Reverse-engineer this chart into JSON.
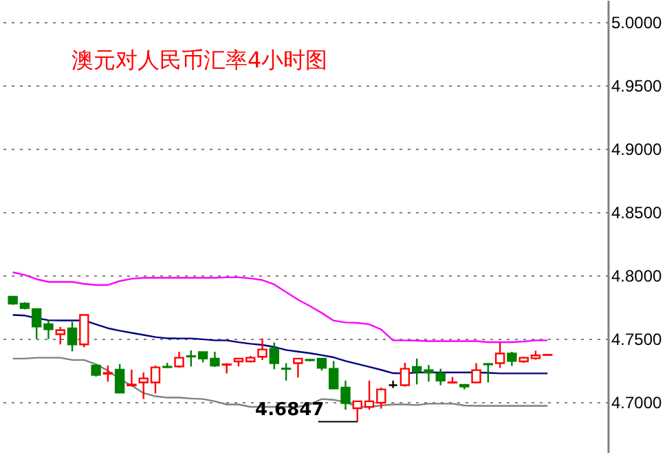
{
  "chart_data": {
    "type": "candlestick",
    "title": "澳元对人民币汇率4小时图",
    "categories": [
      null,
      null,
      null,
      null,
      null,
      null,
      null,
      null,
      null,
      null,
      null,
      null,
      null,
      null,
      null,
      null,
      null,
      null,
      null,
      null,
      null,
      null,
      null,
      null,
      null,
      null,
      null,
      null,
      null,
      null,
      null,
      null,
      null,
      null,
      null,
      null,
      null,
      null,
      null,
      null,
      null,
      null,
      null,
      null,
      null,
      null
    ],
    "ohlc": [
      [
        4.7834,
        4.784,
        4.777,
        4.7779
      ],
      [
        4.7779,
        4.779,
        4.7733,
        4.7744
      ],
      [
        4.7736,
        4.7736,
        4.75,
        4.7598
      ],
      [
        4.7616,
        4.7646,
        4.75,
        4.7576
      ],
      [
        4.7537,
        4.7595,
        4.7457,
        4.757
      ],
      [
        4.7584,
        4.7635,
        4.7402,
        4.7457
      ],
      [
        4.7457,
        4.7689,
        4.7435,
        4.7689
      ],
      [
        4.729,
        4.7298,
        4.7203,
        4.7217
      ],
      [
        4.7225,
        4.729,
        4.7163,
        4.7232
      ],
      [
        4.7258,
        4.7301,
        4.7076,
        4.7076
      ],
      [
        4.7133,
        4.7258,
        4.7127,
        4.714
      ],
      [
        4.7157,
        4.7236,
        4.7026,
        4.7189
      ],
      [
        4.7157,
        4.729,
        4.707,
        4.7276
      ],
      [
        4.7281,
        4.7312,
        4.7272,
        4.7277
      ],
      [
        4.7283,
        4.7399,
        4.7272,
        4.7352
      ],
      [
        4.7365,
        4.741,
        4.7283,
        4.7361
      ],
      [
        4.7396,
        4.7396,
        4.7315,
        4.7345
      ],
      [
        4.7345,
        4.7399,
        4.7279,
        4.729
      ],
      [
        4.7296,
        4.7309,
        4.7228,
        4.73
      ],
      [
        4.7323,
        4.7345,
        4.7283,
        4.7345
      ],
      [
        4.7323,
        4.7366,
        4.7315,
        4.7352
      ],
      [
        4.7359,
        4.7504,
        4.7334,
        4.7417
      ],
      [
        4.7424,
        4.7472,
        4.7261,
        4.7309
      ],
      [
        4.7267,
        4.7309,
        4.7171,
        4.7263
      ],
      [
        4.7309,
        4.7345,
        4.7196,
        4.7345
      ],
      [
        4.7336,
        4.7341,
        4.7323,
        4.7332
      ],
      [
        4.7345,
        4.7345,
        4.725,
        4.7272
      ],
      [
        4.7265,
        4.7326,
        4.7109,
        4.7109
      ],
      [
        4.7116,
        4.7171,
        4.6942,
        4.6993
      ],
      [
        4.6953,
        4.7008,
        4.6847,
        4.7008
      ],
      [
        4.6964,
        4.7171,
        4.6942,
        4.7008
      ],
      [
        4.6997,
        4.7116,
        4.695,
        4.7102
      ],
      [
        4.7135,
        4.7171,
        4.7113,
        4.7135
      ],
      [
        4.7135,
        4.7312,
        4.7124,
        4.7265
      ],
      [
        4.7279,
        4.7345,
        4.7141,
        4.7243
      ],
      [
        4.7254,
        4.7294,
        4.7163,
        4.7236
      ],
      [
        4.7228,
        4.7265,
        4.7135,
        4.7171
      ],
      [
        4.7155,
        4.72,
        4.7155,
        4.7158
      ],
      [
        4.7138,
        4.7138,
        4.7102,
        4.7124
      ],
      [
        4.7157,
        4.7309,
        4.7157,
        4.7254
      ],
      [
        4.7303,
        4.7309,
        4.7157,
        4.7299
      ],
      [
        4.7309,
        4.7472,
        4.7272,
        4.7385
      ],
      [
        4.7385,
        4.7399,
        4.7287,
        4.7326
      ],
      [
        4.7323,
        4.7359,
        4.7312,
        4.7352
      ],
      [
        4.7348,
        4.7407,
        4.7337,
        4.737
      ],
      [
        4.7373,
        4.7375,
        4.7373,
        4.7375
      ]
    ],
    "colors": [
      "#008000",
      "#008000",
      "#008000",
      "#008000",
      "#ff0000",
      "#008000",
      "#ff0000",
      "#008000",
      "#ff0000",
      "#008000",
      "#ff0000",
      "#ff0000",
      "#ff0000",
      "#008000",
      "#ff0000",
      "#008000",
      "#008000",
      "#008000",
      "#ff0000",
      "#ff0000",
      "#ff0000",
      "#ff0000",
      "#008000",
      "#008000",
      "#ff0000",
      "#008000",
      "#008000",
      "#008000",
      "#008000",
      "#ff0000",
      "#ff0000",
      "#ff0000",
      "#000000",
      "#ff0000",
      "#008000",
      "#008000",
      "#008000",
      "#ff0000",
      "#008000",
      "#ff0000",
      "#008000",
      "#ff0000",
      "#008000",
      "#ff0000",
      "#ff0000",
      "#ff0000"
    ],
    "series": [
      {
        "type": "line",
        "color": "#ff00ff",
        "values": [
          4.8026,
          4.8005,
          4.7972,
          4.795,
          4.795,
          4.795,
          4.7935,
          4.7926,
          4.7926,
          4.7957,
          4.7975,
          4.7983,
          4.7983,
          4.7983,
          4.7983,
          4.7983,
          4.7983,
          4.7983,
          4.7986,
          4.7986,
          4.7978,
          4.7965,
          4.793,
          4.787,
          4.781,
          4.776,
          4.7705,
          4.7645,
          4.763,
          4.7627,
          4.7615,
          4.7575,
          4.7489,
          4.7489,
          4.7487,
          4.7483,
          4.7483,
          4.7483,
          4.7483,
          4.7483,
          4.7475,
          4.7475,
          4.7475,
          4.748,
          4.7489,
          4.7489
        ]
      },
      {
        "type": "line",
        "color": "#000080",
        "values": [
          4.7689,
          4.7685,
          4.7665,
          4.7648,
          4.7646,
          4.7646,
          4.7646,
          4.7615,
          4.7585,
          4.7565,
          4.7548,
          4.7532,
          4.7515,
          4.7505,
          4.7504,
          4.7504,
          4.7497,
          4.7489,
          4.7489,
          4.7474,
          4.7462,
          4.7453,
          4.7437,
          4.7413,
          4.74,
          4.7388,
          4.7372,
          4.7355,
          4.7326,
          4.7303,
          4.728,
          4.7256,
          4.723,
          4.7228,
          4.7235,
          4.7236,
          4.7236,
          4.7236,
          4.7236,
          4.7236,
          4.7233,
          4.7228,
          4.7228,
          4.7228,
          4.7228,
          4.7228
        ]
      },
      {
        "type": "line",
        "color": "#808080",
        "values": [
          4.7345,
          4.7345,
          4.7352,
          4.7352,
          4.7352,
          4.7334,
          4.7334,
          4.73,
          4.725,
          4.7182,
          4.7132,
          4.7073,
          4.7048,
          4.7037,
          4.7037,
          4.703,
          4.7026,
          4.7008,
          4.6983,
          4.6983,
          4.6964,
          4.6964,
          4.6964,
          4.6964,
          4.6964,
          4.6983,
          4.7026,
          4.702,
          4.7,
          4.6964,
          4.6964,
          4.6975,
          4.6983,
          4.6983,
          4.6978,
          4.6989,
          4.6989,
          4.6989,
          4.6975,
          4.6972,
          4.6972,
          4.6972,
          4.6972,
          4.6972,
          4.6972,
          4.6972
        ]
      }
    ],
    "annotations": [
      "4.6847"
    ],
    "ylim": [
      4.66,
      5.0175
    ],
    "yticks": [
      {
        "value": 4.7,
        "label": "4.7000"
      },
      {
        "value": 4.75,
        "label": "4.7500"
      },
      {
        "value": 4.8,
        "label": "4.8000"
      },
      {
        "value": 4.85,
        "label": "4.8500"
      },
      {
        "value": 4.9,
        "label": "4.9000"
      },
      {
        "value": 4.95,
        "label": "4.9500"
      },
      {
        "value": 5.0,
        "label": "5.0000"
      }
    ],
    "grid": "y",
    "tick_labels": "y"
  }
}
